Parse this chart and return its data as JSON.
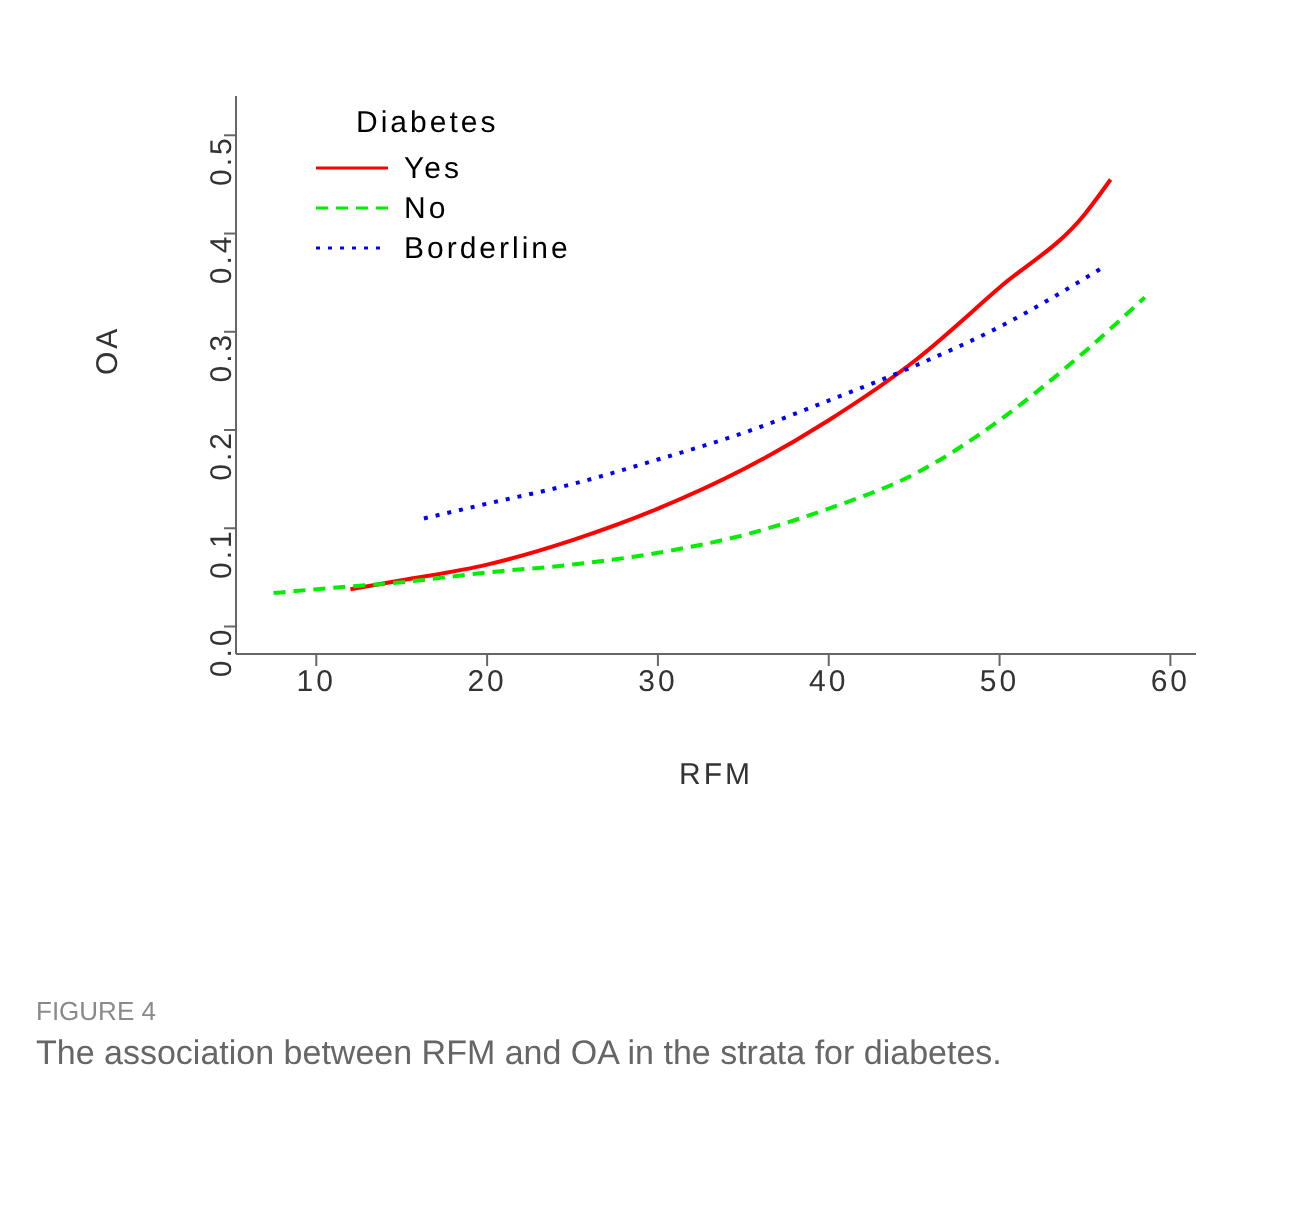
{
  "chart_data": {
    "type": "line",
    "xlabel": "RFM",
    "ylabel": "OA",
    "legend_title": "Diabetes",
    "xlim": [
      5.3,
      61.5
    ],
    "ylim": [
      -0.028,
      0.54
    ],
    "xticks": [
      10,
      20,
      30,
      40,
      50,
      60
    ],
    "yticks": [
      {
        "value": 0,
        "label": "0.0"
      },
      0.1,
      0.2,
      0.3,
      0.4,
      0.5
    ],
    "grid": false,
    "legend": "top left",
    "marker": "none",
    "series": [
      {
        "name": "Yes",
        "color": "#ff0000",
        "line_style": "solid",
        "x": [
          12,
          15,
          20,
          25,
          30,
          35,
          40,
          45,
          50,
          55,
          56.5
        ],
        "values": [
          0.038,
          0.047,
          0.063,
          0.088,
          0.12,
          0.16,
          0.21,
          0.27,
          0.345,
          0.42,
          0.455
        ]
      },
      {
        "name": "No",
        "color": "#00ee00",
        "line_style": "dashed",
        "x": [
          7.5,
          10,
          15,
          20,
          25,
          30,
          35,
          40,
          45,
          50,
          55,
          58.5
        ],
        "values": [
          0.034,
          0.038,
          0.045,
          0.055,
          0.063,
          0.075,
          0.093,
          0.12,
          0.155,
          0.21,
          0.28,
          0.335
        ]
      },
      {
        "name": "Borderline",
        "color": "#0000ff",
        "line_style": "dotted",
        "x": [
          16.3,
          20,
          25,
          30,
          35,
          40,
          45,
          50,
          56
        ],
        "values": [
          0.11,
          0.125,
          0.145,
          0.17,
          0.197,
          0.23,
          0.265,
          0.305,
          0.365
        ]
      }
    ],
    "annotations": [
      "FIGURE 4",
      "The association between RFM and OA in the strata for diabetes."
    ]
  }
}
